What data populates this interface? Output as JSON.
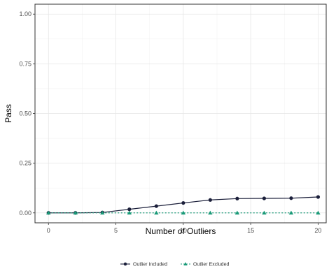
{
  "chart_data": {
    "type": "line",
    "title": "",
    "xlabel": "Number of Outliers",
    "ylabel": "Pass",
    "xlim": [
      -1,
      20.6
    ],
    "ylim": [
      -0.05,
      1.05
    ],
    "x_ticks": [
      0,
      5,
      10,
      15,
      20
    ],
    "y_ticks": [
      0.0,
      0.25,
      0.5,
      0.75,
      1.0
    ],
    "x_tick_labels": [
      "0",
      "5",
      "10",
      "15",
      "20"
    ],
    "y_tick_labels": [
      "0.00",
      "0.25",
      "0.50",
      "0.75",
      "1.00"
    ],
    "grid": true,
    "legend_position": "bottom",
    "x": [
      0,
      2,
      4,
      6,
      8,
      10,
      12,
      14,
      16,
      18,
      20
    ],
    "series": [
      {
        "name": "Outlier Included",
        "values": [
          0.0,
          0.0,
          0.002,
          0.018,
          0.034,
          0.05,
          0.065,
          0.072,
          0.073,
          0.074,
          0.08
        ],
        "color": "#1b1f3a",
        "marker": "circle",
        "line_style": "solid"
      },
      {
        "name": "Outlier Excluded",
        "values": [
          0,
          0,
          0,
          0,
          0,
          0,
          0,
          0,
          0,
          0,
          0
        ],
        "color": "#1a9a78",
        "marker": "triangle",
        "line_style": "dotted"
      }
    ]
  }
}
